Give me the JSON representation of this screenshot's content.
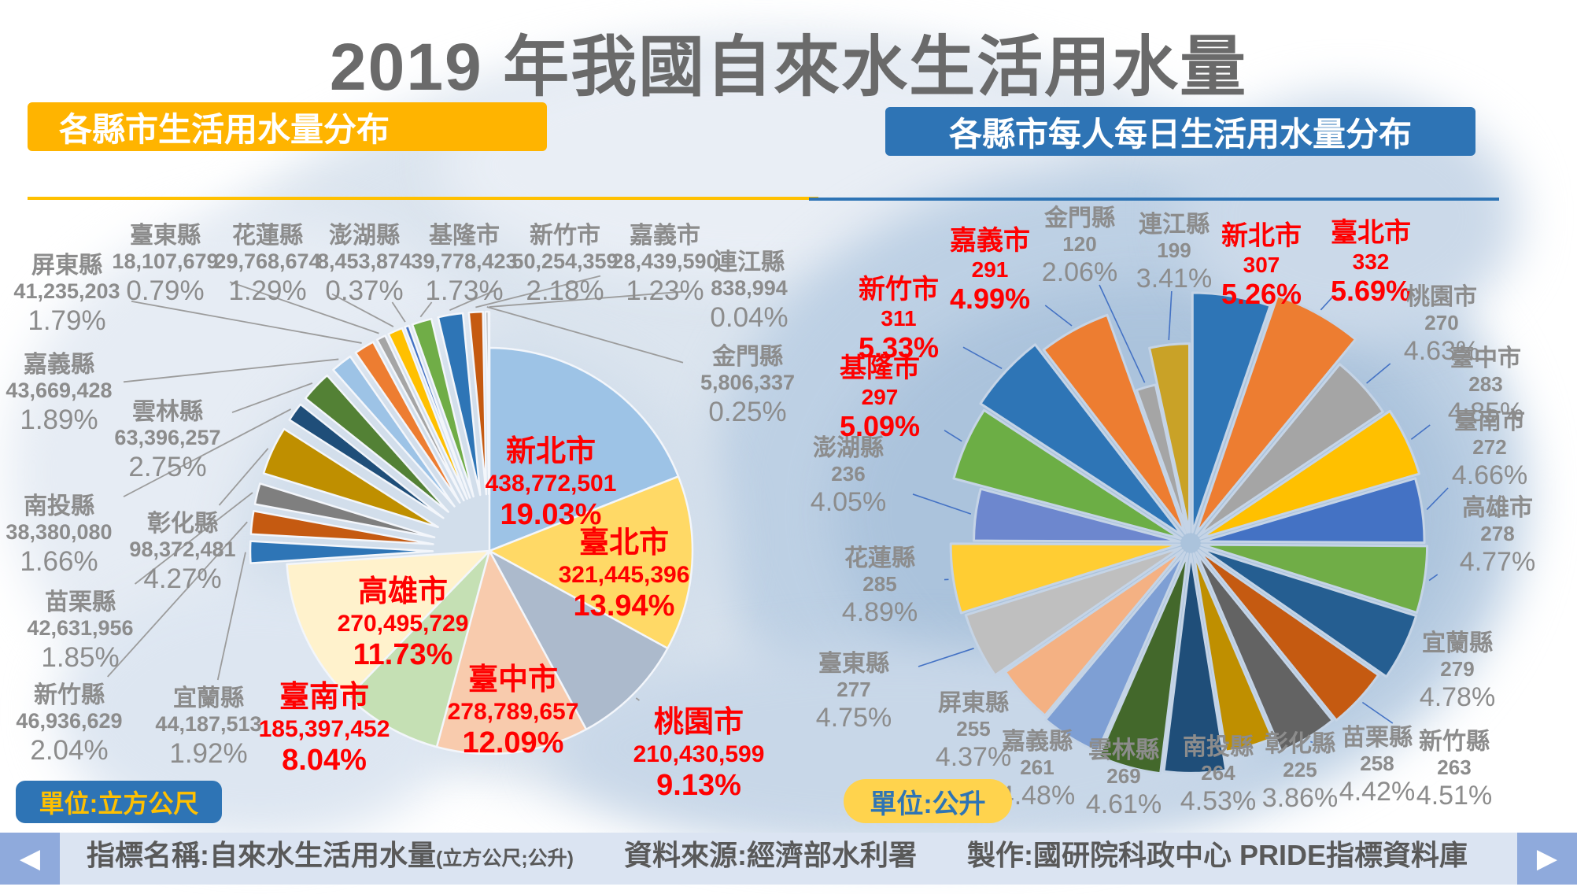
{
  "page_title": "2019 年我國自來水生活用水量",
  "left_chart": {
    "title": "各縣市生活用水量分布",
    "unit_badge": "單位:立方公尺",
    "accent_color": "#FFB400"
  },
  "right_chart": {
    "title": "各縣市每人每日生活用水量分布",
    "unit_badge": "單位:公升",
    "accent_color": "#2E74B5"
  },
  "footer": {
    "indicator_label": "指標名稱:自來水生活用水量",
    "indicator_sub": "(立方公尺;公升)",
    "source": "資料來源:經濟部水利署",
    "maker": "製作:國研院科政中心  PRIDE指標資料庫",
    "prev_icon": "◀",
    "next_icon": "▶"
  },
  "chart_data": [
    {
      "type": "pie",
      "title": "各縣市生活用水量分布",
      "unit": "立方公尺",
      "highlight_text_color": "#FF0000",
      "label_text_color": "#8C8C8C",
      "slices": [
        {
          "name": "新北市",
          "value": "438,772,501",
          "pct": 19.03,
          "pct_label": "19.03%",
          "color": "#9DC3E6",
          "red": true
        },
        {
          "name": "臺北市",
          "value": "321,445,396",
          "pct": 13.94,
          "pct_label": "13.94%",
          "color": "#FFD966",
          "red": true
        },
        {
          "name": "桃園市",
          "value": "210,430,599",
          "pct": 9.13,
          "pct_label": "9.13%",
          "color": "#ACBACC",
          "red": true
        },
        {
          "name": "臺中市",
          "value": "278,789,657",
          "pct": 12.09,
          "pct_label": "12.09%",
          "color": "#F8CBAD",
          "red": true
        },
        {
          "name": "臺南市",
          "value": "185,397,452",
          "pct": 8.04,
          "pct_label": "8.04%",
          "color": "#C5E0B4",
          "red": true
        },
        {
          "name": "高雄市",
          "value": "270,495,729",
          "pct": 11.73,
          "pct_label": "11.73%",
          "color": "#FFF2CC",
          "red": true
        },
        {
          "name": "宜蘭縣",
          "value": "44,187,513",
          "pct": 1.92,
          "pct_label": "1.92%",
          "color": "#2E75B6"
        },
        {
          "name": "新竹縣",
          "value": "46,936,629",
          "pct": 2.04,
          "pct_label": "2.04%",
          "color": "#C55A11"
        },
        {
          "name": "苗栗縣",
          "value": "42,631,956",
          "pct": 1.85,
          "pct_label": "1.85%",
          "color": "#7F7F7F"
        },
        {
          "name": "彰化縣",
          "value": "98,372,481",
          "pct": 4.27,
          "pct_label": "4.27%",
          "color": "#BF8F00"
        },
        {
          "name": "南投縣",
          "value": "38,380,080",
          "pct": 1.66,
          "pct_label": "1.66%",
          "color": "#1F4E79"
        },
        {
          "name": "雲林縣",
          "value": "63,396,257",
          "pct": 2.75,
          "pct_label": "2.75%",
          "color": "#538135"
        },
        {
          "name": "嘉義縣",
          "value": "43,669,428",
          "pct": 1.89,
          "pct_label": "1.89%",
          "color": "#9DC3E6"
        },
        {
          "name": "屏東縣",
          "value": "41,235,203",
          "pct": 1.79,
          "pct_label": "1.79%",
          "color": "#ED7D31"
        },
        {
          "name": "臺東縣",
          "value": "18,107,679",
          "pct": 0.79,
          "pct_label": "0.79%",
          "color": "#A5A5A5"
        },
        {
          "name": "花蓮縣",
          "value": "29,768,674",
          "pct": 1.29,
          "pct_label": "1.29%",
          "color": "#FFC000"
        },
        {
          "name": "澎湖縣",
          "value": "8,453,874",
          "pct": 0.37,
          "pct_label": "0.37%",
          "color": "#4472C4"
        },
        {
          "name": "基隆市",
          "value": "39,778,423",
          "pct": 1.73,
          "pct_label": "1.73%",
          "color": "#70AD47"
        },
        {
          "name": "新竹市",
          "value": "50,254,359",
          "pct": 2.18,
          "pct_label": "2.18%",
          "color": "#2E75B6"
        },
        {
          "name": "嘉義市",
          "value": "28,439,590",
          "pct": 1.23,
          "pct_label": "1.23%",
          "color": "#C55A11"
        },
        {
          "name": "金門縣",
          "value": "5,806,337",
          "pct": 0.25,
          "pct_label": "0.25%",
          "color": "#A5A5A5"
        },
        {
          "name": "連江縣",
          "value": "838,994",
          "pct": 0.04,
          "pct_label": "0.04%",
          "color": "#FFC000"
        }
      ]
    },
    {
      "type": "pie",
      "title": "各縣市每人每日生活用水量分布",
      "unit": "公升",
      "highlight_text_color": "#FF0000",
      "label_text_color": "#8C8C8C",
      "slices": [
        {
          "name": "新北市",
          "value": "307",
          "pct": 5.26,
          "pct_label": "5.26%",
          "color": "#2E75B6",
          "red": true
        },
        {
          "name": "臺北市",
          "value": "332",
          "pct": 5.69,
          "pct_label": "5.69%",
          "color": "#ED7D31",
          "red": true
        },
        {
          "name": "桃園市",
          "value": "270",
          "pct": 4.63,
          "pct_label": "4.63%",
          "color": "#A5A5A5"
        },
        {
          "name": "臺中市",
          "value": "283",
          "pct": 4.85,
          "pct_label": "4.85%",
          "color": "#FFC000"
        },
        {
          "name": "臺南市",
          "value": "272",
          "pct": 4.66,
          "pct_label": "4.66%",
          "color": "#4472C4"
        },
        {
          "name": "高雄市",
          "value": "278",
          "pct": 4.77,
          "pct_label": "4.77%",
          "color": "#70AD47"
        },
        {
          "name": "宜蘭縣",
          "value": "279",
          "pct": 4.78,
          "pct_label": "4.78%",
          "color": "#255E91"
        },
        {
          "name": "新竹縣",
          "value": "263",
          "pct": 4.51,
          "pct_label": "4.51%",
          "color": "#C55A11"
        },
        {
          "name": "苗栗縣",
          "value": "258",
          "pct": 4.42,
          "pct_label": "4.42%",
          "color": "#636363"
        },
        {
          "name": "彰化縣",
          "value": "225",
          "pct": 3.86,
          "pct_label": "3.86%",
          "color": "#BF8F00"
        },
        {
          "name": "南投縣",
          "value": "264",
          "pct": 4.53,
          "pct_label": "4.53%",
          "color": "#1F4E79"
        },
        {
          "name": "雲林縣",
          "value": "269",
          "pct": 4.61,
          "pct_label": "4.61%",
          "color": "#43682B"
        },
        {
          "name": "嘉義縣",
          "value": "261",
          "pct": 4.48,
          "pct_label": "4.48%",
          "color": "#7E9FD4"
        },
        {
          "name": "屏東縣",
          "value": "255",
          "pct": 4.37,
          "pct_label": "4.37%",
          "color": "#F4B183"
        },
        {
          "name": "臺東縣",
          "value": "277",
          "pct": 4.75,
          "pct_label": "4.75%",
          "color": "#BFBFBF"
        },
        {
          "name": "花蓮縣",
          "value": "285",
          "pct": 4.89,
          "pct_label": "4.89%",
          "color": "#FFCD33"
        },
        {
          "name": "澎湖縣",
          "value": "236",
          "pct": 4.05,
          "pct_label": "4.05%",
          "color": "#6D87CE"
        },
        {
          "name": "基隆市",
          "value": "297",
          "pct": 5.09,
          "pct_label": "5.09%",
          "color": "#6CAE45",
          "red": true
        },
        {
          "name": "新竹市",
          "value": "311",
          "pct": 5.33,
          "pct_label": "5.33%",
          "color": "#2E75B6",
          "red": true
        },
        {
          "name": "嘉義市",
          "value": "291",
          "pct": 4.99,
          "pct_label": "4.99%",
          "color": "#ED7D31",
          "red": true
        },
        {
          "name": "金門縣",
          "value": "120",
          "pct": 2.06,
          "pct_label": "2.06%",
          "color": "#A5A5A5"
        },
        {
          "name": "連江縣",
          "value": "199",
          "pct": 3.41,
          "pct_label": "3.41%",
          "color": "#C9A227"
        }
      ]
    }
  ]
}
